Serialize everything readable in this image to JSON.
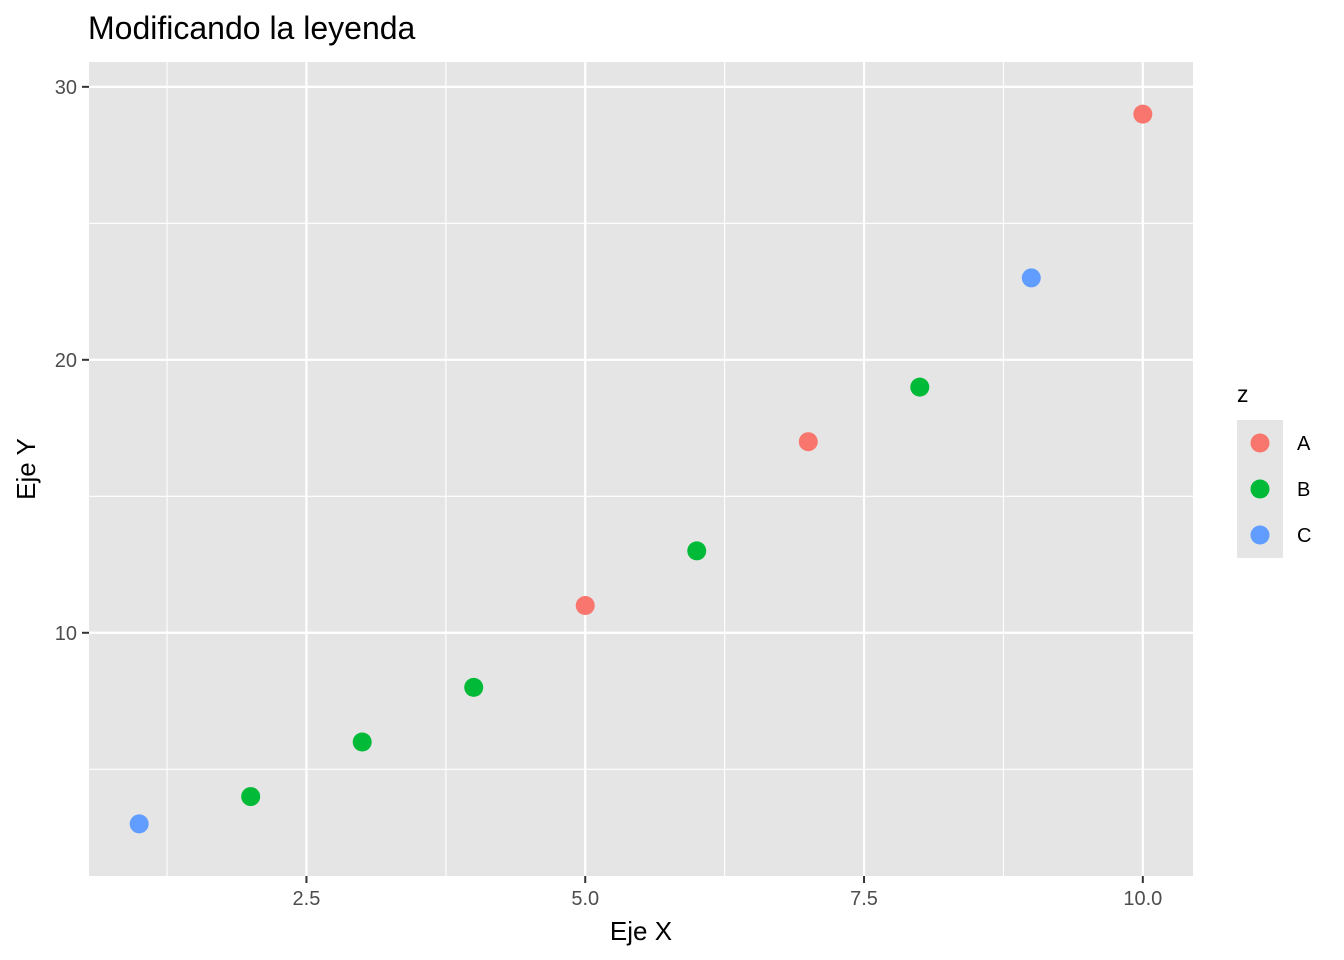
{
  "chart_data": {
    "type": "scatter",
    "title": "Modificando la leyenda",
    "xlabel": "Eje X",
    "ylabel": "Eje Y",
    "xlim": [
      0.55,
      10.45
    ],
    "ylim": [
      1.09,
      30.91
    ],
    "x_ticks": [
      2.5,
      5.0,
      7.5,
      10.0
    ],
    "x_tick_labels": [
      "2.5",
      "5.0",
      "7.5",
      "10.0"
    ],
    "y_ticks": [
      10,
      20,
      30
    ],
    "y_tick_labels": [
      "10",
      "20",
      "30"
    ],
    "x_minor_ticks": [
      1.25,
      3.75,
      6.25,
      8.75
    ],
    "y_minor_ticks": [
      5,
      15,
      25
    ],
    "grid": true,
    "legend": {
      "title": "z",
      "position": "right",
      "entries": [
        {
          "label": "A",
          "color": "#F8766D"
        },
        {
          "label": "B",
          "color": "#00BA38"
        },
        {
          "label": "C",
          "color": "#619CFF"
        }
      ]
    },
    "points": [
      {
        "x": 1,
        "y": 3,
        "group": "C"
      },
      {
        "x": 2,
        "y": 4,
        "group": "B"
      },
      {
        "x": 3,
        "y": 6,
        "group": "B"
      },
      {
        "x": 4,
        "y": 8,
        "group": "B"
      },
      {
        "x": 5,
        "y": 11,
        "group": "A"
      },
      {
        "x": 6,
        "y": 13,
        "group": "B"
      },
      {
        "x": 7,
        "y": 17,
        "group": "A"
      },
      {
        "x": 8,
        "y": 19,
        "group": "B"
      },
      {
        "x": 9,
        "y": 23,
        "group": "C"
      },
      {
        "x": 10,
        "y": 29,
        "group": "A"
      }
    ],
    "colors": {
      "panel_background": "#E5E5E5",
      "grid": "#FFFFFF",
      "tick_text": "#4D4D4D"
    }
  }
}
